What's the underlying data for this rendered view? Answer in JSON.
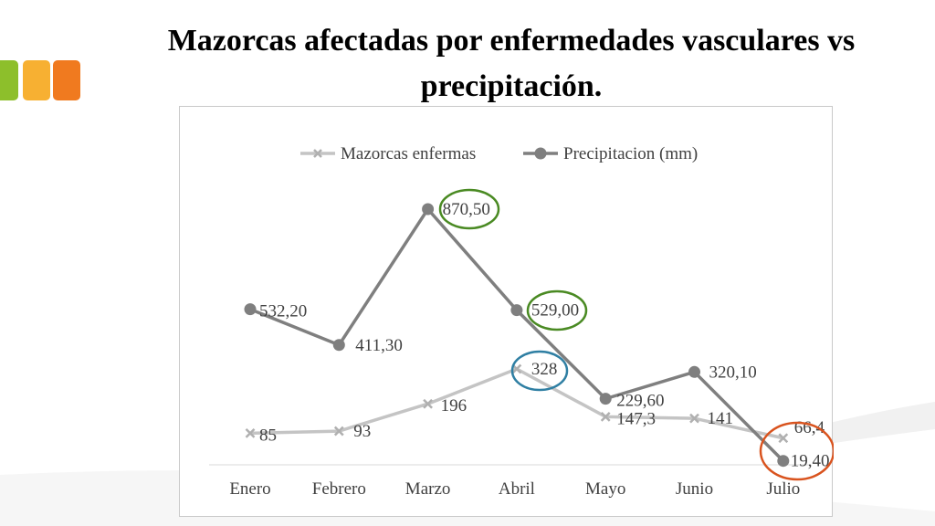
{
  "slide": {
    "title_line1": "Mazorcas afectadas por enfermedades vasculares vs",
    "title_line2": "precipitación."
  },
  "colors": {
    "deco": [
      "#8dbf2b",
      "#f7b032",
      "#f07a1f"
    ],
    "mazorcas_series": "#c4c4c4",
    "precip_series": "#7f7f7f",
    "label_text": "#404040",
    "highlight_green": "#4a8a23",
    "highlight_blue": "#2f7fa3",
    "highlight_orange": "#d9531e"
  },
  "chart_data": {
    "type": "line",
    "categories": [
      "Enero",
      "Febrero",
      "Marzo",
      "Abril",
      "Mayo",
      "Junio",
      "Julio"
    ],
    "series": [
      {
        "name": "Mazorcas enfermas",
        "values": [
          85,
          93,
          196,
          328,
          147.3,
          141,
          66.4
        ],
        "labels": [
          "85",
          "93",
          "196",
          "328",
          "147,3",
          "141",
          "66,4"
        ],
        "color": "#c4c4c4",
        "marker": "x"
      },
      {
        "name": "Precipitacion (mm)",
        "values": [
          532.2,
          411.3,
          870.5,
          529.0,
          229.6,
          320.1,
          19.4
        ],
        "labels": [
          "532,20",
          "411,30",
          "870,50",
          "529,00",
          "229,60",
          "320,10",
          "19,40"
        ],
        "color": "#7f7f7f",
        "marker": "circle"
      }
    ],
    "highlights": [
      {
        "series": 1,
        "index": 2,
        "color": "green"
      },
      {
        "series": 1,
        "index": 3,
        "color": "green"
      },
      {
        "series": 0,
        "index": 3,
        "color": "blue"
      },
      {
        "series": 0,
        "index": 6,
        "color": "orange"
      },
      {
        "series": 1,
        "index": 6,
        "color": "orange"
      }
    ],
    "legend_position": "top",
    "grid": false,
    "title": "",
    "xlabel": "",
    "ylabel": ""
  }
}
